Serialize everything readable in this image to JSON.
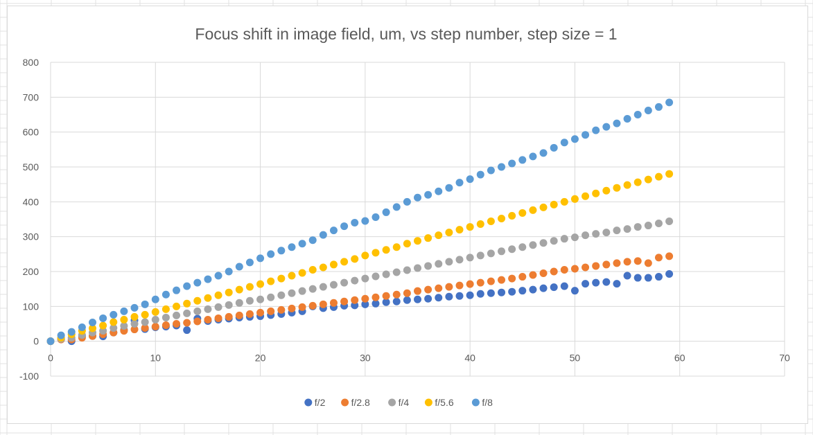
{
  "colors": {
    "sheet_grid": "#e1e1e1",
    "plot_grid": "#d9d9d9",
    "text": "#595959"
  },
  "chart_data": {
    "type": "scatter",
    "title": "Focus shift in image field, um, vs step number, step size = 1",
    "xlabel": "",
    "ylabel": "",
    "xlim": [
      0,
      70
    ],
    "ylim": [
      -100,
      800
    ],
    "x_ticks": [
      0,
      10,
      20,
      30,
      40,
      50,
      60,
      70
    ],
    "y_ticks": [
      -100,
      0,
      100,
      200,
      300,
      400,
      500,
      600,
      700,
      800
    ],
    "grid": true,
    "legend_position": "bottom",
    "x": [
      0,
      1,
      2,
      3,
      4,
      5,
      6,
      7,
      8,
      9,
      10,
      11,
      12,
      13,
      14,
      15,
      16,
      17,
      18,
      19,
      20,
      21,
      22,
      23,
      24,
      25,
      26,
      27,
      28,
      29,
      30,
      31,
      32,
      33,
      34,
      35,
      36,
      37,
      38,
      39,
      40,
      41,
      42,
      43,
      44,
      45,
      46,
      47,
      48,
      49,
      50,
      51,
      52,
      53,
      54,
      55,
      56,
      57,
      58,
      59
    ],
    "series": [
      {
        "name": "f/2",
        "color": "#4472c4",
        "values": [
          0,
          6,
          0,
          15,
          15,
          14,
          25,
          32,
          60,
          35,
          40,
          42,
          45,
          32,
          65,
          58,
          62,
          65,
          68,
          70,
          72,
          75,
          78,
          82,
          86,
          100,
          95,
          98,
          102,
          103,
          106,
          108,
          112,
          114,
          118,
          120,
          122,
          125,
          128,
          130,
          132,
          136,
          138,
          140,
          142,
          145,
          148,
          152,
          155,
          158,
          145,
          165,
          168,
          170,
          165,
          188,
          182,
          182,
          185,
          193
        ]
      },
      {
        "name": "f/2.8",
        "color": "#ed7d31",
        "values": [
          0,
          5,
          5,
          10,
          15,
          20,
          25,
          30,
          34,
          38,
          42,
          46,
          50,
          53,
          57,
          62,
          66,
          70,
          74,
          78,
          82,
          86,
          90,
          94,
          98,
          102,
          106,
          110,
          114,
          118,
          122,
          126,
          130,
          134,
          138,
          144,
          148,
          152,
          156,
          160,
          164,
          168,
          172,
          176,
          180,
          185,
          190,
          195,
          200,
          205,
          208,
          212,
          216,
          220,
          224,
          228,
          230,
          224,
          240,
          244
        ]
      },
      {
        "name": "f/4",
        "color": "#a5a5a5",
        "values": [
          0,
          7,
          10,
          18,
          25,
          30,
          38,
          44,
          50,
          55,
          62,
          68,
          74,
          80,
          86,
          92,
          98,
          104,
          110,
          116,
          120,
          126,
          132,
          138,
          144,
          150,
          156,
          162,
          168,
          174,
          180,
          186,
          192,
          198,
          204,
          210,
          216,
          222,
          228,
          234,
          240,
          246,
          252,
          258,
          264,
          270,
          276,
          282,
          288,
          294,
          298,
          304,
          308,
          312,
          318,
          322,
          328,
          332,
          338,
          344
        ]
      },
      {
        "name": "f/5.6",
        "color": "#ffc000",
        "values": [
          0,
          10,
          20,
          30,
          37,
          45,
          55,
          62,
          70,
          76,
          84,
          92,
          100,
          108,
          116,
          124,
          132,
          140,
          148,
          156,
          164,
          172,
          180,
          188,
          196,
          205,
          212,
          220,
          228,
          236,
          246,
          254,
          262,
          270,
          280,
          288,
          296,
          304,
          312,
          320,
          328,
          336,
          344,
          352,
          360,
          368,
          376,
          384,
          392,
          400,
          408,
          416,
          424,
          432,
          440,
          448,
          456,
          464,
          472,
          480
        ]
      },
      {
        "name": "f/8",
        "color": "#5b9bd5",
        "values": [
          0,
          17,
          27,
          40,
          54,
          66,
          76,
          86,
          96,
          106,
          120,
          134,
          146,
          158,
          168,
          178,
          188,
          200,
          214,
          226,
          238,
          250,
          260,
          270,
          280,
          290,
          305,
          318,
          330,
          340,
          345,
          356,
          370,
          385,
          400,
          412,
          420,
          430,
          440,
          455,
          465,
          478,
          490,
          500,
          510,
          520,
          530,
          540,
          555,
          570,
          580,
          592,
          605,
          615,
          625,
          638,
          650,
          662,
          672,
          685
        ]
      }
    ]
  }
}
